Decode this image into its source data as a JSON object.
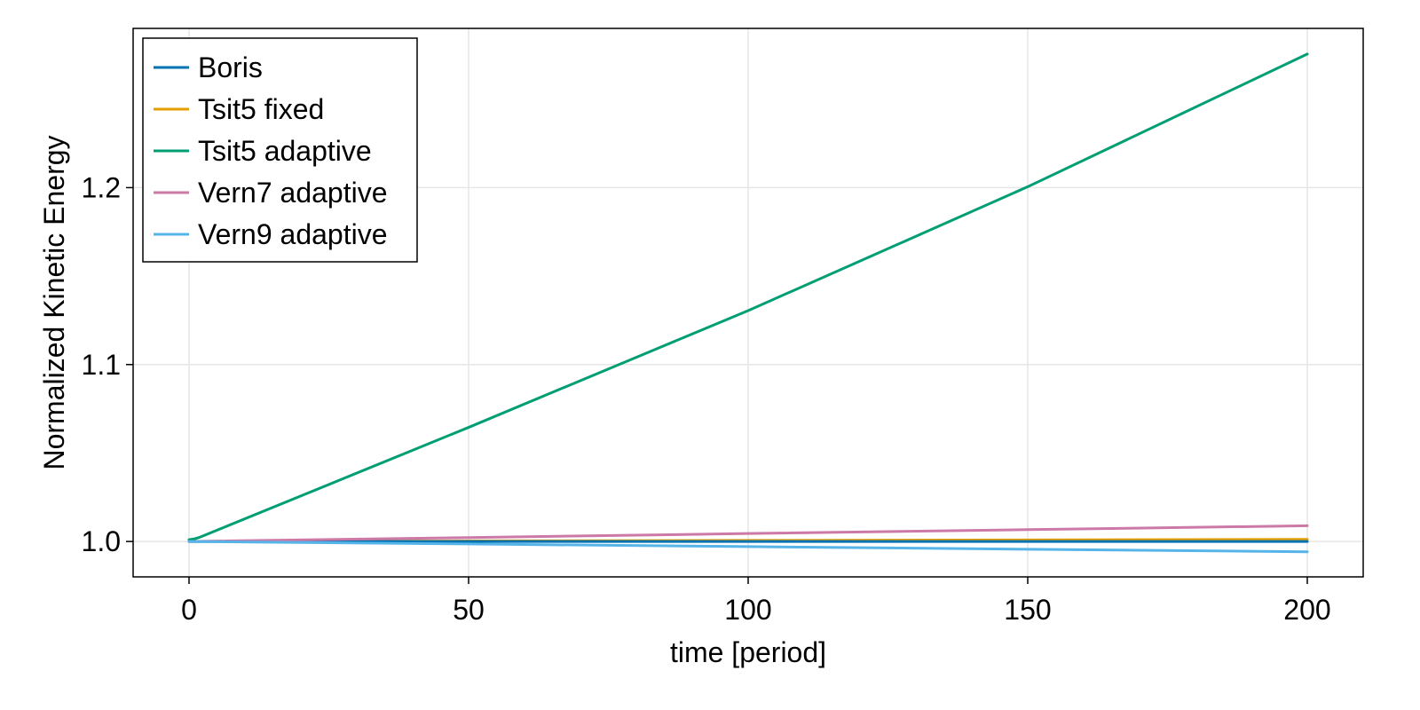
{
  "chart_data": {
    "type": "line",
    "title": "",
    "xlabel": "time [period]",
    "ylabel": "Normalized Kinetic Energy",
    "xlim": [
      -10,
      210
    ],
    "ylim": [
      0.98,
      1.29
    ],
    "xticks": [
      0,
      50,
      100,
      150,
      200
    ],
    "xtick_labels": [
      "0",
      "50",
      "100",
      "150",
      "200"
    ],
    "yticks": [
      1.0,
      1.1,
      1.2
    ],
    "ytick_labels": [
      "1.0",
      "1.1",
      "1.2"
    ],
    "grid": true,
    "legend_position": "top-left",
    "series": [
      {
        "name": "Boris",
        "color": "#0072b2",
        "x": [
          0,
          50,
          100,
          150,
          200
        ],
        "y": [
          1.0,
          1.0,
          1.0,
          1.0,
          1.0
        ]
      },
      {
        "name": "Tsit5 fixed",
        "color": "#e69f00",
        "x": [
          0,
          50,
          100,
          150,
          200
        ],
        "y": [
          1.0,
          1.0003,
          1.0006,
          1.0009,
          1.0012
        ]
      },
      {
        "name": "Tsit5 adaptive",
        "color": "#009e73",
        "x": [
          0,
          1,
          2,
          50,
          100,
          150,
          200
        ],
        "y": [
          1.001,
          1.0015,
          1.0025,
          1.0645,
          1.1305,
          1.2005,
          1.2755
        ]
      },
      {
        "name": "Vern7 adaptive",
        "color": "#cc79a7",
        "x": [
          0,
          50,
          100,
          150,
          200
        ],
        "y": [
          1.0,
          1.0022,
          1.0045,
          1.0067,
          1.0089
        ]
      },
      {
        "name": "Vern9 adaptive",
        "color": "#56b4e9",
        "x": [
          0,
          50,
          100,
          150,
          200
        ],
        "y": [
          1.0,
          0.9986,
          0.9971,
          0.9956,
          0.9942
        ]
      }
    ]
  }
}
